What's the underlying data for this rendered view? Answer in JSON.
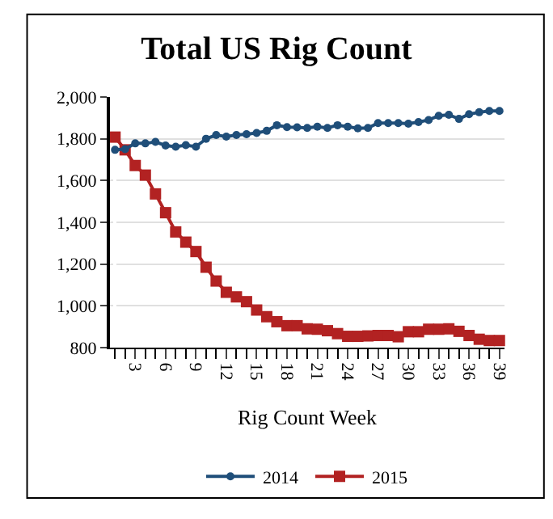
{
  "chart_data": {
    "type": "line",
    "title": "Total US Rig Count",
    "xlabel": "Rig Count Week",
    "categories": [
      null,
      null,
      "3",
      null,
      null,
      "6",
      null,
      null,
      "9",
      null,
      null,
      "12",
      null,
      null,
      "15",
      null,
      null,
      "18",
      null,
      null,
      "21",
      null,
      null,
      "24",
      null,
      null,
      "27",
      null,
      null,
      "30",
      null,
      null,
      "33",
      null,
      null,
      "36",
      null,
      null,
      "39"
    ],
    "series": [
      {
        "name": "2014",
        "color": "#1f4e79",
        "marker": "circle",
        "values": [
          1747,
          1750,
          1778,
          1778,
          1785,
          1768,
          1762,
          1770,
          1762,
          1800,
          1818,
          1810,
          1818,
          1822,
          1828,
          1838,
          1865,
          1856,
          1855,
          1852,
          1858,
          1852,
          1865,
          1858,
          1850,
          1852,
          1875,
          1875,
          1875,
          1872,
          1880,
          1890,
          1910,
          1915,
          1895,
          1918,
          1927,
          1933,
          1933
        ]
      },
      {
        "name": "2015",
        "color": "#b22222",
        "marker": "square",
        "values": [
          1808,
          1747,
          1672,
          1626,
          1536,
          1446,
          1354,
          1305,
          1260,
          1185,
          1119,
          1065,
          1043,
          1020,
          980,
          948,
          924,
          905,
          905,
          890,
          888,
          881,
          867,
          854,
          854,
          856,
          858,
          858,
          852,
          876,
          876,
          888,
          888,
          890,
          878,
          858,
          840,
          834,
          834
        ]
      }
    ],
    "ylim": [
      800,
      2000
    ],
    "yticks": [
      {
        "value": 800,
        "label": "800"
      },
      {
        "value": 1000,
        "label": "1,000"
      },
      {
        "value": 1200,
        "label": "1,200"
      },
      {
        "value": 1400,
        "label": "1,400"
      },
      {
        "value": 1600,
        "label": "1,600"
      },
      {
        "value": 1800,
        "label": "1,800"
      },
      {
        "value": 2000,
        "label": "2,000"
      }
    ],
    "grid": "y",
    "legend": "bottom",
    "line_style": "solid"
  }
}
